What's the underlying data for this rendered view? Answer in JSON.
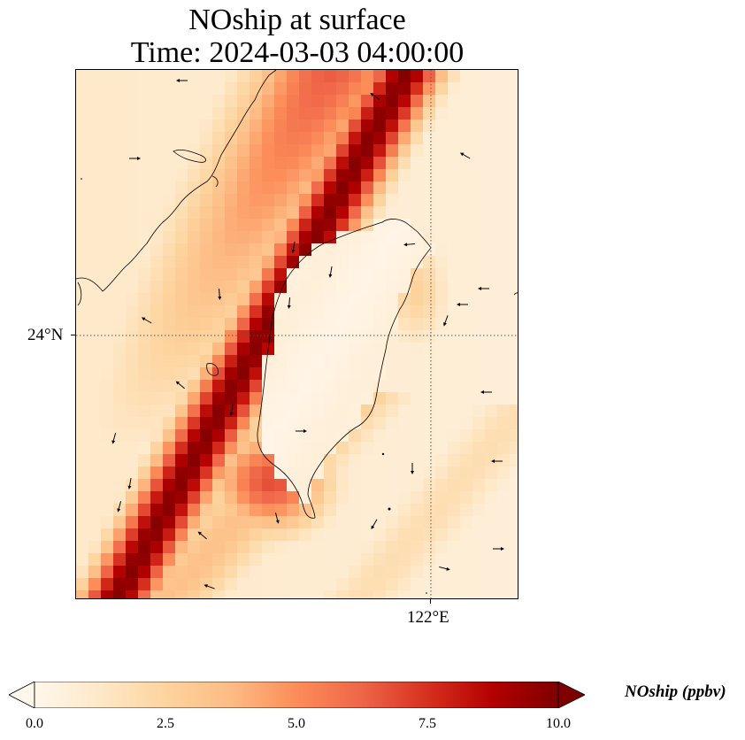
{
  "title": {
    "line1": "NOship at surface",
    "line2": "Time: 2024-03-03 04:00:00"
  },
  "axes": {
    "lat_tick_label": "24°N",
    "lon_tick_label": "122°E",
    "gridlines": "dotted"
  },
  "colorbar": {
    "label": "NOship (ppbv)",
    "ticks": [
      "0.0",
      "2.5",
      "5.0",
      "7.5",
      "10.0"
    ],
    "min": 0.0,
    "max": 10.0,
    "extend": "both",
    "colormap": "OrRd",
    "colors": [
      "#fff7ec",
      "#fee8c8",
      "#fdd49e",
      "#fdbb84",
      "#fc8d59",
      "#ef6548",
      "#d7301f",
      "#b30000",
      "#7f0000"
    ]
  },
  "map_content": {
    "region": "Taiwan Strait and Taiwan",
    "field": "NOship concentration",
    "wind_vectors": "small black arrows",
    "high_values": "shipping lane along the Chinese coast (diagonal band, ~10 ppbv) and plume south-west of Taiwan (~6-7 ppbv)",
    "background_values": "0.3-1.5 ppbv over Taiwan and the open ocean"
  }
}
